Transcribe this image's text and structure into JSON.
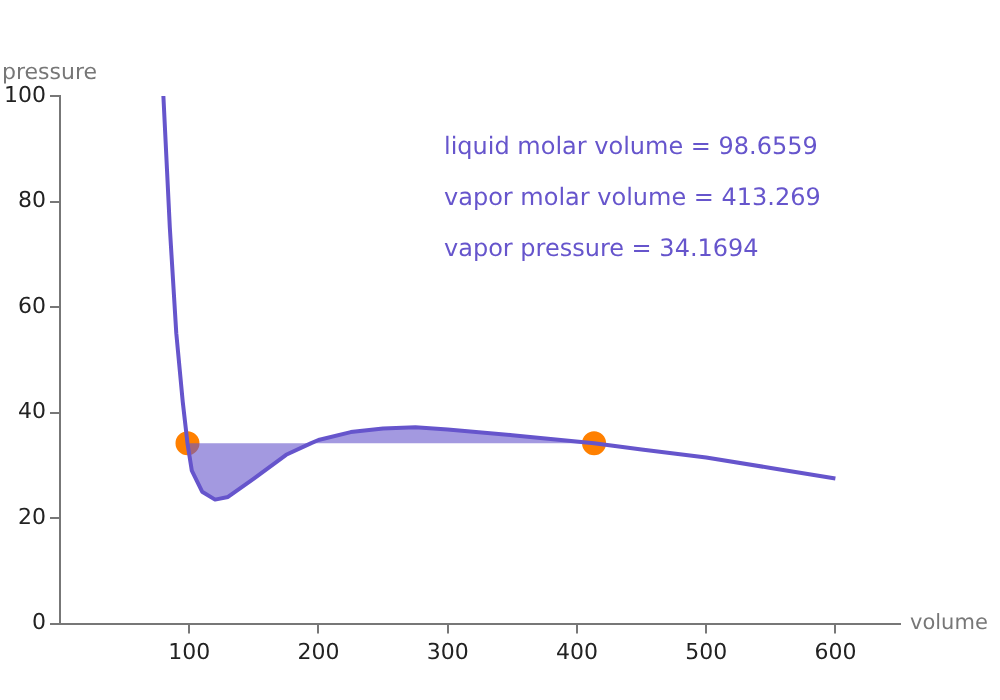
{
  "chart_data": {
    "type": "line",
    "xlabel": "volume",
    "ylabel": "pressure",
    "xlim": [
      0,
      650
    ],
    "ylim": [
      0,
      100
    ],
    "xticks": [
      100,
      200,
      300,
      400,
      500,
      600
    ],
    "yticks": [
      0,
      20,
      40,
      60,
      80,
      100
    ],
    "grid": false,
    "legend": false,
    "marker": "none",
    "line_style": "solid",
    "annotations": [
      "liquid molar volume = 98.6559",
      "vapor molar volume = 413.269",
      "vapor pressure = 34.1694"
    ],
    "series": [
      {
        "color": "#6655cc",
        "x": [
          80,
          85,
          90,
          95,
          98.6559,
          102,
          110,
          120,
          130,
          150,
          175,
          194,
          200,
          225,
          250,
          275,
          300,
          350,
          413.269,
          450,
          500,
          550,
          600
        ],
        "values": [
          100,
          75,
          55,
          42,
          34.1694,
          29,
          25,
          23.5,
          24,
          27.5,
          32,
          34.1694,
          34.8,
          36.3,
          37,
          37.2,
          36.8,
          35.7,
          34.1694,
          33,
          31.5,
          29.5,
          27.5
        ],
        "lower": [
          null,
          null,
          null,
          null,
          34.1694,
          29,
          25,
          23.5,
          24,
          27.5,
          32,
          34.1694,
          34.1694,
          34.1694,
          34.1694,
          34.1694,
          34.1694,
          34.1694,
          34.1694,
          null,
          null,
          null,
          null
        ],
        "upper": [
          null,
          null,
          null,
          null,
          34.1694,
          34.1694,
          34.1694,
          34.1694,
          34.1694,
          34.1694,
          34.1694,
          34.1694,
          34.8,
          36.3,
          37,
          37.2,
          36.8,
          35.7,
          34.1694,
          null,
          null,
          null,
          null
        ]
      },
      {
        "type": "scatter",
        "color": "#ff8000",
        "marker": "circle",
        "x": [
          98.6559,
          413.269
        ],
        "values": [
          34.1694,
          34.1694
        ]
      }
    ]
  }
}
